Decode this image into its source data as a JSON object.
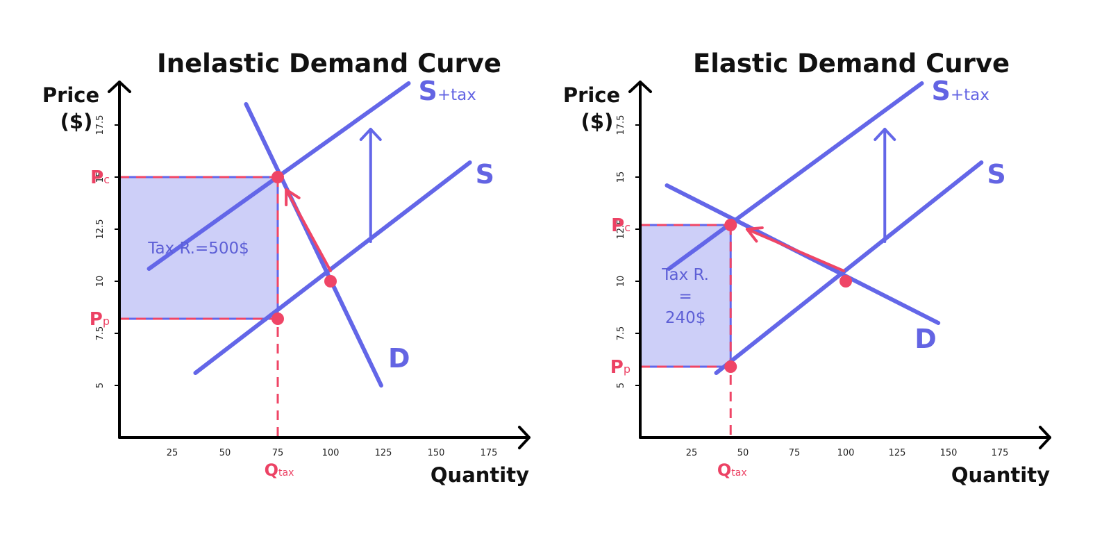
{
  "colors": {
    "curve": "#6366e8",
    "area_fill": "#cdcff8",
    "highlight": "#ef4566",
    "axis": "#000000"
  },
  "chart_data": [
    {
      "type": "line",
      "title": "Inelastic Demand Curve",
      "xlabel": "Quantity",
      "ylabel": "Price ($)",
      "x_ticks": [
        25,
        50,
        75,
        100,
        125,
        150,
        175
      ],
      "y_ticks": [
        5,
        7.5,
        10,
        12.5,
        15,
        17.5
      ],
      "series": [
        {
          "name": "S",
          "points": [
            [
              36,
              5.6
            ],
            [
              166,
              15.7
            ]
          ]
        },
        {
          "name": "S+tax",
          "points": [
            [
              14,
              10.6
            ],
            [
              137,
              19.5
            ]
          ]
        },
        {
          "name": "D",
          "points": [
            [
              60,
              18.5
            ],
            [
              124,
              5
            ]
          ]
        }
      ],
      "tax_shift_arrow": {
        "x": 119,
        "from": 11.9,
        "to": 17.3
      },
      "movement_arrow": {
        "from": [
          100,
          10.5
        ],
        "to": [
          79,
          14.4
        ]
      },
      "points": [
        {
          "x": 75,
          "y": 15
        },
        {
          "x": 75,
          "y": 8.2
        },
        {
          "x": 100,
          "y": 10
        }
      ],
      "markers": {
        "Pc": 15,
        "Pp": 8.2,
        "Qtax": 75
      },
      "marker_labels": {
        "Pc": "P",
        "Pc_sub": "c",
        "Pp": "P",
        "Pp_sub": "p",
        "Q": "Q",
        "Q_sub": "tax"
      },
      "curve_labels": {
        "S": "S",
        "S_tax": "S",
        "S_tax_sub": "+tax",
        "D": "D"
      },
      "tax_revenue": [
        "Tax R.=500$"
      ]
    },
    {
      "type": "line",
      "title": "Elastic Demand Curve",
      "xlabel": "Quantity",
      "ylabel": "Price ($)",
      "x_ticks": [
        25,
        50,
        75,
        100,
        125,
        150,
        175
      ],
      "y_ticks": [
        5,
        7.5,
        10,
        12.5,
        15,
        17.5
      ],
      "series": [
        {
          "name": "S",
          "points": [
            [
              37,
              5.6
            ],
            [
              166,
              15.7
            ]
          ]
        },
        {
          "name": "S+tax",
          "points": [
            [
              14,
              10.6
            ],
            [
              137,
              19.5
            ]
          ]
        },
        {
          "name": "D",
          "points": [
            [
              13,
              14.6
            ],
            [
              145,
              8
            ]
          ]
        }
      ],
      "tax_shift_arrow": {
        "x": 119,
        "from": 11.9,
        "to": 17.3
      },
      "movement_arrow": {
        "from": [
          99,
          10.5
        ],
        "to": [
          52,
          12.5
        ]
      },
      "points": [
        {
          "x": 44,
          "y": 12.7
        },
        {
          "x": 44,
          "y": 5.9
        },
        {
          "x": 100,
          "y": 10
        }
      ],
      "markers": {
        "Pc": 12.7,
        "Pp": 5.9,
        "Qtax": 44
      },
      "marker_labels": {
        "Pc": "P",
        "Pc_sub": "c",
        "Pp": "P",
        "Pp_sub": "p",
        "Q": "Q",
        "Q_sub": "tax"
      },
      "curve_labels": {
        "S": "S",
        "S_tax": "S",
        "S_tax_sub": "+tax",
        "D": "D"
      },
      "tax_revenue": [
        "Tax R.",
        "=",
        "240$"
      ]
    }
  ]
}
